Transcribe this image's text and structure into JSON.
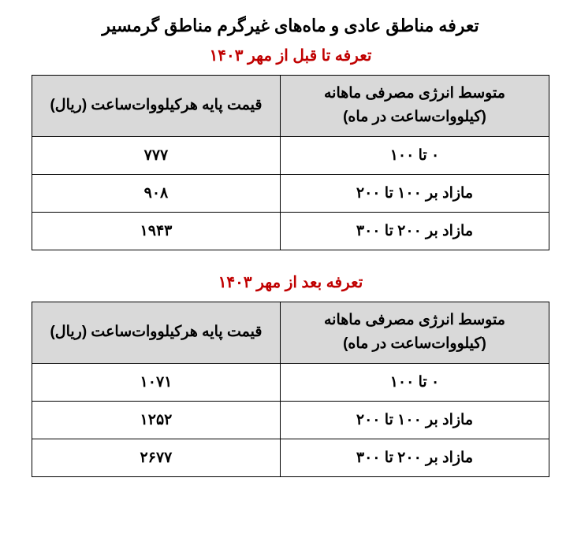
{
  "main_title": "تعرفه مناطق عادی و ماه‌های غیرگرم مناطق گرمسیر",
  "section1": {
    "title": "تعرفه تا قبل از مهر ۱۴۰۳",
    "columns": {
      "range": "متوسط انرژی مصرفی ماهانه (کیلووات‌ساعت در ماه)",
      "price": "قیمت پایه هرکیلووات‌ساعت (ریال)"
    },
    "rows": [
      {
        "range": "۰ تا ۱۰۰",
        "price": "۷۷۷"
      },
      {
        "range": "مازاد بر ۱۰۰ تا ۲۰۰",
        "price": "۹۰۸"
      },
      {
        "range": "مازاد بر ۲۰۰ تا ۳۰۰",
        "price": "۱۹۴۳"
      }
    ]
  },
  "section2": {
    "title": "تعرفه بعد از مهر ۱۴۰۳",
    "columns": {
      "range": "متوسط انرژی مصرفی ماهانه (کیلووات‌ساعت در ماه)",
      "price": "قیمت پایه هرکیلووات‌ساعت (ریال)"
    },
    "rows": [
      {
        "range": "۰ تا ۱۰۰",
        "price": "۱۰۷۱"
      },
      {
        "range": "مازاد بر ۱۰۰ تا ۲۰۰",
        "price": "۱۲۵۲"
      },
      {
        "range": "مازاد بر ۲۰۰ تا ۳۰۰",
        "price": "۲۶۷۷"
      }
    ]
  },
  "styles": {
    "main_title_color": "#000000",
    "sub_title_color": "#c00000",
    "header_bg": "#d9d9d9",
    "cell_bg": "#ffffff",
    "border_color": "#000000",
    "main_title_fontsize": 22,
    "sub_title_fontsize": 20,
    "cell_fontsize": 19
  }
}
